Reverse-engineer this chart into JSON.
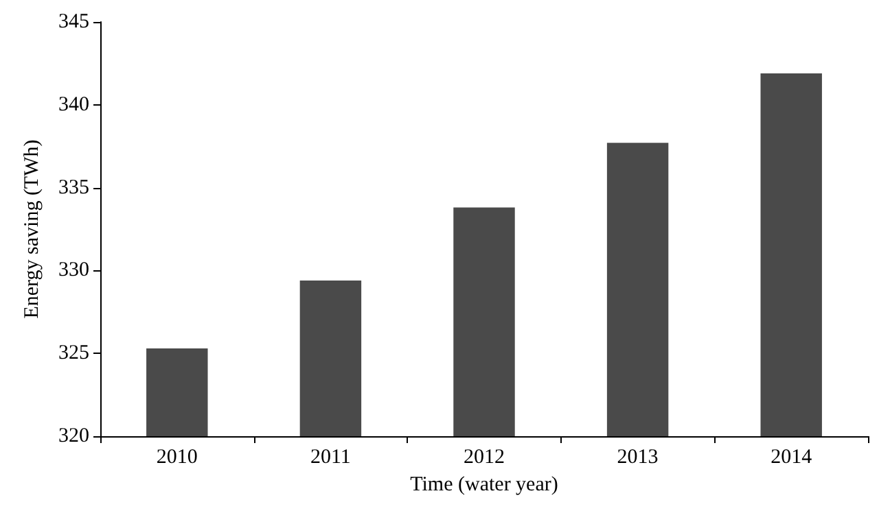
{
  "chart_data": {
    "type": "bar",
    "xlabel": "Time (water year)",
    "ylabel": "Energy saving (TWh)",
    "categories": [
      "2010",
      "2011",
      "2012",
      "2013",
      "2014"
    ],
    "values": [
      325.3,
      329.4,
      333.8,
      337.7,
      341.9
    ],
    "color": "#4a4a4a",
    "ylim": [
      320,
      345
    ],
    "yticks": [
      320,
      325,
      330,
      335,
      340,
      345
    ],
    "grid": false
  }
}
